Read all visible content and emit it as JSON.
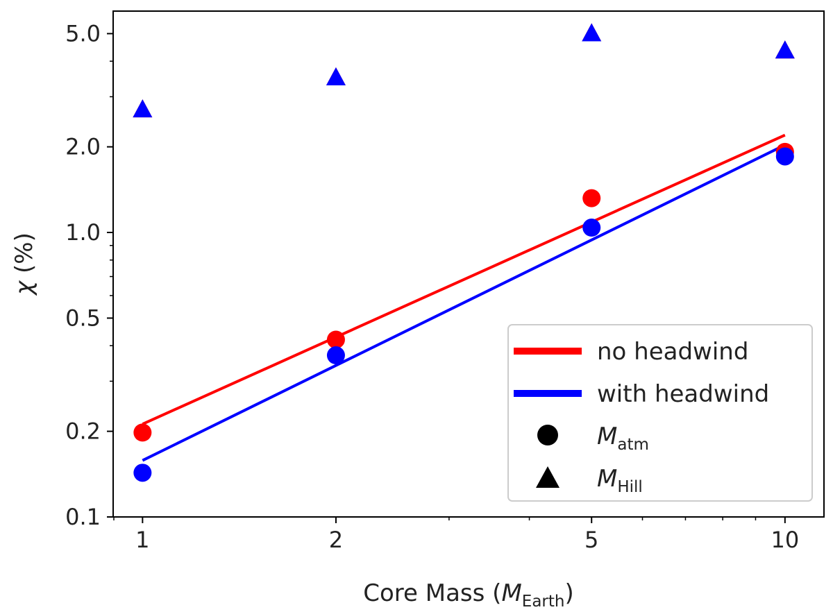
{
  "chart_data": {
    "type": "scatter",
    "title": "",
    "xscale": "log",
    "yscale": "log",
    "xlim": [
      0.9,
      11.5
    ],
    "ylim": [
      0.1,
      6.0
    ],
    "xticks": [
      {
        "value": 1,
        "label": "1"
      },
      {
        "value": 2,
        "label": "2"
      },
      {
        "value": 5,
        "label": "5"
      },
      {
        "value": 10,
        "label": "10"
      }
    ],
    "yticks": [
      {
        "value": 0.1,
        "label": "0.1"
      },
      {
        "value": 0.2,
        "label": "0.2"
      },
      {
        "value": 0.5,
        "label": "0.5"
      },
      {
        "value": 1.0,
        "label": "1.0"
      },
      {
        "value": 2.0,
        "label": "2.0"
      },
      {
        "value": 5.0,
        "label": "5.0"
      }
    ],
    "xlabel": {
      "prefix": "Core Mass (",
      "symbol": "M",
      "subscript": "Earth",
      "suffix": ")"
    },
    "ylabel": {
      "symbol": "χ",
      "suffix": " (%)"
    },
    "series": [
      {
        "name": "no headwind",
        "color": "#ff0000",
        "x": [
          1,
          2,
          5,
          10
        ],
        "atm": [
          0.198,
          0.42,
          1.32,
          1.92
        ],
        "hill": [
          2.7,
          3.5,
          5.0,
          4.35
        ],
        "fit": {
          "x": [
            1,
            10
          ],
          "y": [
            0.212,
            2.2
          ]
        }
      },
      {
        "name": "with headwind",
        "color": "#0000ff",
        "x": [
          1,
          2,
          5,
          10
        ],
        "atm": [
          0.143,
          0.37,
          1.04,
          1.85
        ],
        "hill": [
          2.7,
          3.5,
          5.0,
          4.35
        ],
        "fit": {
          "x": [
            1,
            10
          ],
          "y": [
            0.158,
            2.03
          ]
        }
      }
    ],
    "legend": {
      "position": "lower-right",
      "entries": [
        {
          "marker": "line",
          "color": "#ff0000",
          "label": "no headwind"
        },
        {
          "marker": "line",
          "color": "#0000ff",
          "label": "with headwind"
        },
        {
          "marker": "circle",
          "color": "#000000",
          "symbol": "M",
          "subscript": "atm"
        },
        {
          "marker": "triangle",
          "color": "#000000",
          "symbol": "M",
          "subscript": "Hill"
        }
      ]
    }
  }
}
